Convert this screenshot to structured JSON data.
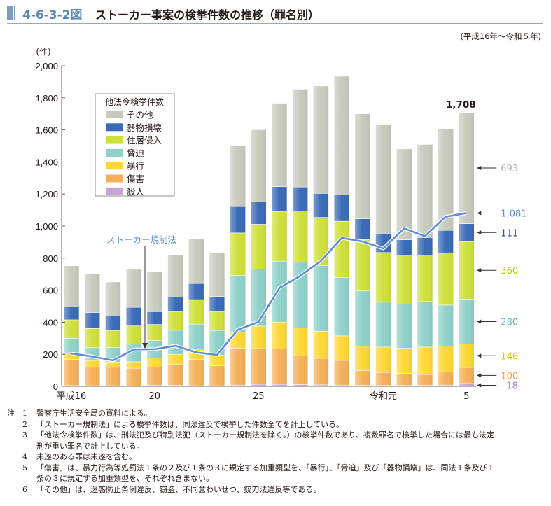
{
  "header": {
    "figure_number": "4-6-3-2図",
    "title": "ストーカー事案の検挙件数の推移（罪名別）",
    "period": "(平成16年～令和５年)"
  },
  "chart_data": {
    "type": "bar",
    "stacked": true,
    "title": "ストーカー事案の検挙件数の推移（罪名別）",
    "ylabel": "(件)",
    "xlabel": "",
    "ylim": [
      0,
      2000
    ],
    "yticks": [
      0,
      200,
      400,
      600,
      800,
      1000,
      1200,
      1400,
      1600,
      1800,
      2000
    ],
    "ytick_labels": [
      "0",
      "200",
      "400",
      "600",
      "800",
      "1,000",
      "1,200",
      "1,400",
      "1,600",
      "1,800",
      "2,000"
    ],
    "categories": [
      "H16",
      "H17",
      "H18",
      "H19",
      "H20",
      "H21",
      "H22",
      "H23",
      "H24",
      "H25",
      "H26",
      "H27",
      "H28",
      "H29",
      "H30",
      "R1",
      "R2",
      "R3",
      "R4",
      "R5"
    ],
    "xtick_labels": [
      {
        "index": 0,
        "label": "平成16"
      },
      {
        "index": 4,
        "label": "20"
      },
      {
        "index": 9,
        "label": "25"
      },
      {
        "index": 15,
        "label": "令和元"
      },
      {
        "index": 19,
        "label": "5"
      }
    ],
    "legend_title": "他法令検挙件数",
    "legend_position": "upper-left",
    "series": [
      {
        "name": "殺人",
        "color": "#c9a3d4",
        "values": [
          5,
          4,
          4,
          3,
          8,
          7,
          4,
          4,
          8,
          13,
          13,
          11,
          9,
          8,
          6,
          6,
          6,
          6,
          8,
          18
        ]
      },
      {
        "name": "傷害",
        "color": "#f5b05a",
        "values": [
          162,
          115,
          115,
          110,
          112,
          130,
          163,
          125,
          230,
          223,
          220,
          178,
          166,
          154,
          92,
          81,
          75,
          68,
          83,
          100
        ]
      },
      {
        "name": "暴行",
        "color": "#fdd835",
        "values": [
          43,
          42,
          33,
          40,
          56,
          63,
          61,
          65,
          99,
          140,
          168,
          175,
          169,
          153,
          153,
          158,
          156,
          171,
          160,
          146
        ]
      },
      {
        "name": "脅迫",
        "color": "#8fd1c9",
        "values": [
          90,
          80,
          90,
          110,
          110,
          150,
          160,
          155,
          355,
          355,
          380,
          410,
          410,
          365,
          344,
          280,
          277,
          284,
          256,
          280
        ]
      },
      {
        "name": "住居侵入",
        "color": "#cfe03a",
        "values": [
          115,
          120,
          107,
          120,
          100,
          115,
          153,
          116,
          265,
          280,
          310,
          320,
          300,
          350,
          320,
          310,
          300,
          290,
          326,
          360
        ]
      },
      {
        "name": "器物損壊",
        "color": "#3a6bb8",
        "values": [
          80,
          100,
          90,
          110,
          80,
          92,
          100,
          95,
          165,
          140,
          155,
          150,
          150,
          165,
          130,
          120,
          100,
          110,
          140,
          111
        ]
      },
      {
        "name": "その他",
        "color": "#c8cabd",
        "values": [
          257,
          240,
          212,
          237,
          250,
          265,
          277,
          274,
          380,
          450,
          520,
          610,
          670,
          740,
          655,
          680,
          567,
          580,
          635,
          693
        ]
      }
    ],
    "line_series": {
      "name": "ストーカー規制法",
      "color": "#5b8ed6",
      "values": [
        205,
        186,
        162,
        230,
        232,
        253,
        212,
        196,
        353,
        402,
        613,
        689,
        782,
        926,
        904,
        860,
        985,
        937,
        1058,
        1081
      ]
    },
    "annotations": {
      "total_last": "1,708",
      "stalker_law_label": "ストーカー規制法",
      "stalker_law_arrow_index": 5,
      "right_labels": [
        {
          "series": "その他",
          "value": "693",
          "color": "#b8bcb0"
        },
        {
          "series": "ストーカー規制法",
          "value": "1,081",
          "color": "#5b8ed6"
        },
        {
          "series": "器物損壊",
          "value": "111",
          "color": "#1d50a0"
        },
        {
          "series": "住居侵入",
          "value": "360",
          "color": "#b7c800"
        },
        {
          "series": "脅迫",
          "value": "280",
          "color": "#5fc0b6"
        },
        {
          "series": "暴行",
          "value": "146",
          "color": "#f2c200"
        },
        {
          "series": "傷害",
          "value": "100",
          "color": "#f2a040"
        },
        {
          "series": "殺人",
          "value": "18",
          "color": "#b07fc4"
        }
      ]
    }
  },
  "notes": {
    "head": "注",
    "items": [
      {
        "num": "1",
        "text": "警察庁生活安全局の資料による。"
      },
      {
        "num": "2",
        "text": "「ストーカー規制法」による検挙件数は、同法違反で検挙した件数全てを計上している。"
      },
      {
        "num": "3",
        "text": "「他法令検挙件数」は、刑法犯及び特別法犯（ストーカー規制法を除く。）の検挙件数であり、複数罪名で検挙した場合には最も法定",
        "cont": "刑が重い罪名で計上している。"
      },
      {
        "num": "4",
        "text": "未遂のある罪は未遂を含む。"
      },
      {
        "num": "5",
        "text": "「傷害」は、暴力行為等処罰法１条の２及び１条の３に規定する加重類型を、「暴行」、「脅迫」及び「器物損壊」は、同法１条及び１",
        "cont": "条の３に規定する加重類型を、それぞれ含まない。"
      },
      {
        "num": "6",
        "text": "「その他」は、迷惑防止条例違反、窃盗、不同意わいせつ、銃刀法違反等である。"
      }
    ]
  }
}
